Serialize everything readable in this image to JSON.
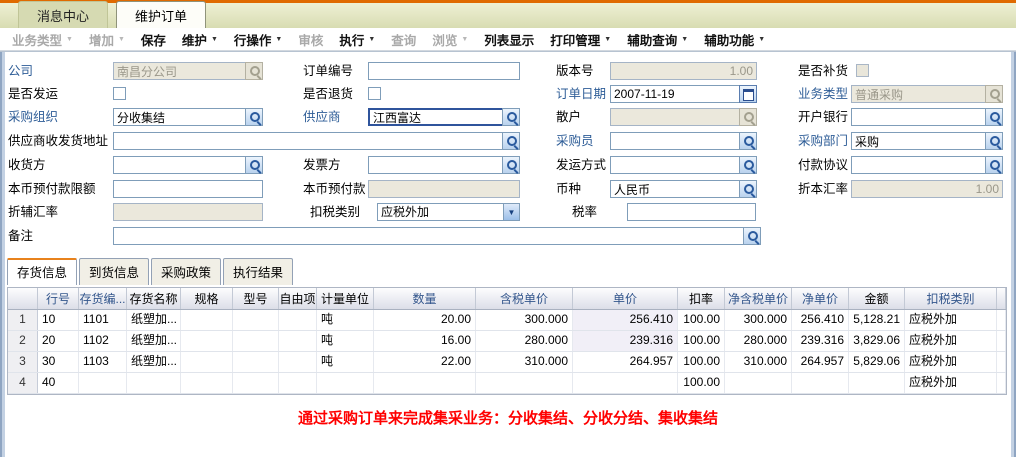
{
  "window_tabs": [
    {
      "label": "消息中心",
      "active": false
    },
    {
      "label": "维护订单",
      "active": true
    }
  ],
  "toolbar": {
    "items": [
      {
        "label": "业务类型",
        "arrow": true,
        "enabled": false
      },
      {
        "label": "增加",
        "arrow": true,
        "enabled": false
      },
      {
        "label": "保存",
        "arrow": false,
        "enabled": true
      },
      {
        "label": "维护",
        "arrow": true,
        "enabled": true
      },
      {
        "label": "行操作",
        "arrow": true,
        "enabled": true
      },
      {
        "label": "审核",
        "arrow": false,
        "enabled": false
      },
      {
        "label": "执行",
        "arrow": true,
        "enabled": true
      },
      {
        "label": "查询",
        "arrow": false,
        "enabled": false
      },
      {
        "label": "浏览",
        "arrow": true,
        "enabled": false
      },
      {
        "label": "列表显示",
        "arrow": false,
        "enabled": true
      },
      {
        "label": "打印管理",
        "arrow": true,
        "enabled": true
      },
      {
        "label": "辅助查询",
        "arrow": true,
        "enabled": true
      },
      {
        "label": "辅助功能",
        "arrow": true,
        "enabled": true
      }
    ]
  },
  "form": {
    "company": {
      "label": "公司",
      "value": "南昌分公司"
    },
    "order_no": {
      "label": "订单编号",
      "value": ""
    },
    "version": {
      "label": "版本号",
      "value": "1.00"
    },
    "is_replenish": {
      "label": "是否补货",
      "checked": false
    },
    "is_ship": {
      "label": "是否发运",
      "checked": false
    },
    "is_return": {
      "label": "是否退货",
      "checked": false
    },
    "order_date": {
      "label": "订单日期",
      "value": "2007-11-19"
    },
    "biz_type": {
      "label": "业务类型",
      "value": "普通采购"
    },
    "purchase_org": {
      "label": "采购组织",
      "value": "分收集结"
    },
    "supplier": {
      "label": "供应商",
      "value": "江西富达"
    },
    "retail": {
      "label": "散户",
      "value": ""
    },
    "bank": {
      "label": "开户银行",
      "value": ""
    },
    "supplier_address": {
      "label": "供应商收发货地址",
      "value": ""
    },
    "buyer": {
      "label": "采购员",
      "value": ""
    },
    "purchase_dept": {
      "label": "采购部门",
      "value": "采购"
    },
    "receiver": {
      "label": "收货方",
      "value": ""
    },
    "invoice_party": {
      "label": "发票方",
      "value": ""
    },
    "ship_method": {
      "label": "发运方式",
      "value": ""
    },
    "payment_agreement": {
      "label": "付款协议",
      "value": ""
    },
    "prepay_limit": {
      "label": "本币预付款限额",
      "value": ""
    },
    "prepay": {
      "label": "本币预付款",
      "value": ""
    },
    "currency": {
      "label": "币种",
      "value": "人民币"
    },
    "base_rate": {
      "label": "折本汇率",
      "value": "1.00"
    },
    "aux_rate": {
      "label": "折辅汇率",
      "value": ""
    },
    "tax_category": {
      "label": "扣税类别",
      "value": "应税外加"
    },
    "tax_rate": {
      "label": "税率",
      "value": ""
    },
    "remark": {
      "label": "备注",
      "value": ""
    }
  },
  "detail_tabs": [
    {
      "label": "存货信息",
      "active": true
    },
    {
      "label": "到货信息",
      "active": false
    },
    {
      "label": "采购政策",
      "active": false
    },
    {
      "label": "执行结果",
      "active": false
    }
  ],
  "grid": {
    "headers": [
      "",
      "行号",
      "存货编...",
      "存货名称",
      "规格",
      "型号",
      "自由项",
      "计量单位",
      "数量",
      "含税单价",
      "单价",
      "扣率",
      "净含税单价",
      "净单价",
      "金额",
      "扣税类别"
    ],
    "rows": [
      [
        "1",
        "10",
        "1101",
        "纸塑加...",
        "",
        "",
        "",
        "吨",
        "20.00",
        "300.000",
        "256.410",
        "100.00",
        "300.000",
        "256.410",
        "5,128.21",
        "应税外加"
      ],
      [
        "2",
        "20",
        "1102",
        "纸塑加...",
        "",
        "",
        "",
        "吨",
        "16.00",
        "280.000",
        "239.316",
        "100.00",
        "280.000",
        "239.316",
        "3,829.06",
        "应税外加"
      ],
      [
        "3",
        "30",
        "1103",
        "纸塑加...",
        "",
        "",
        "",
        "吨",
        "22.00",
        "310.000",
        "264.957",
        "100.00",
        "310.000",
        "264.957",
        "5,829.06",
        "应税外加"
      ],
      [
        "4",
        "40",
        "",
        "",
        "",
        "",
        "",
        "",
        "",
        "",
        "",
        "100.00",
        "",
        "",
        "",
        "应税外加"
      ]
    ]
  },
  "footer_message": "通过采购订单来完成集采业务：分收集结、分收分结、集收集结",
  "colors": {
    "accent_orange": "#e06a00",
    "required_label_blue": "#2e5d97",
    "banner_red": "#ff0000",
    "disabled_field_bg": "#ebe8dc"
  }
}
